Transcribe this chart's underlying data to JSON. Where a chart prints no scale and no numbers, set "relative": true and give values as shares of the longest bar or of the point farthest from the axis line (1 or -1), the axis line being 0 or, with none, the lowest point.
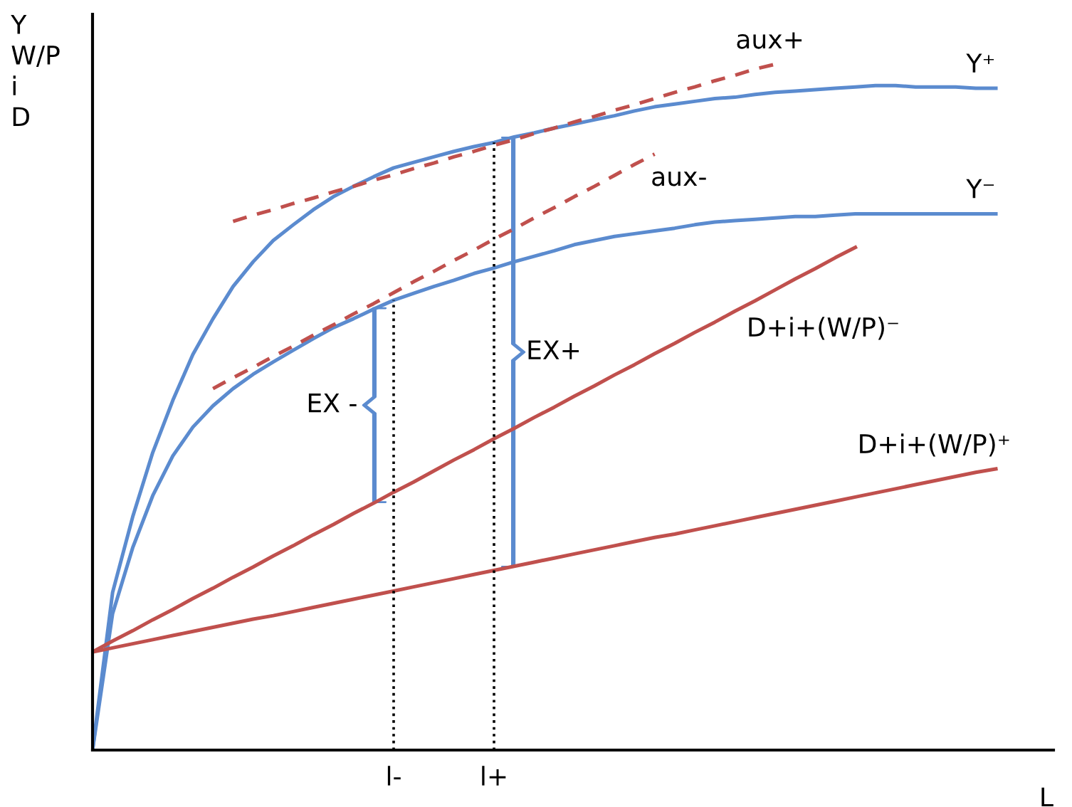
{
  "chart_data": {
    "type": "line",
    "relative": true,
    "xlabel": "L",
    "ylabel": "Y\nW/P\ni\nD",
    "marker": "none",
    "categories": [
      null,
      null,
      null,
      null,
      null,
      null,
      null,
      null,
      null,
      null,
      null,
      null,
      null,
      null,
      null,
      "l-",
      null,
      null,
      null,
      null,
      "l+",
      null,
      null,
      null,
      null,
      null,
      null,
      null,
      null,
      null,
      null,
      null,
      null,
      null,
      null,
      null,
      null,
      null,
      null,
      null,
      null,
      null,
      null,
      null,
      null,
      null,
      null,
      null
    ],
    "series": [
      {
        "name": "Y⁺",
        "color": "#5b8bcf",
        "line_style": "solid",
        "values": [
          0,
          0.23,
          0.34,
          0.434,
          0.51,
          0.577,
          0.629,
          0.676,
          0.712,
          0.743,
          0.766,
          0.788,
          0.807,
          0.822,
          0.836,
          0.849,
          0.857,
          0.865,
          0.873,
          0.88,
          0.886,
          0.894,
          0.9,
          0.907,
          0.913,
          0.919,
          0.925,
          0.932,
          0.938,
          0.942,
          0.946,
          0.95,
          0.952,
          0.956,
          0.959,
          0.961,
          0.963,
          0.965,
          0.967,
          0.969,
          0.969,
          0.967,
          0.967,
          0.967,
          0.965,
          0.965,
          null,
          null
        ]
      },
      {
        "name": "Y⁻",
        "color": "#5b8bcf",
        "line_style": "solid",
        "values": [
          0,
          0.199,
          0.295,
          0.371,
          0.429,
          0.471,
          0.502,
          0.527,
          0.548,
          0.566,
          0.583,
          0.6,
          0.616,
          0.629,
          0.643,
          0.656,
          0.666,
          0.676,
          0.685,
          0.695,
          0.703,
          0.712,
          0.72,
          0.728,
          0.737,
          0.743,
          0.749,
          0.753,
          0.757,
          0.761,
          0.766,
          0.77,
          0.772,
          0.774,
          0.776,
          0.778,
          0.778,
          0.78,
          0.782,
          0.782,
          0.782,
          0.782,
          0.782,
          0.782,
          0.782,
          0.782,
          null,
          null
        ]
      },
      {
        "name": "aux+",
        "color": "#c0504d",
        "line_style": "dashed",
        "values": [
          null,
          null,
          null,
          null,
          null,
          null,
          null,
          0.771,
          0.78,
          0.788,
          0.797,
          0.805,
          0.814,
          0.822,
          0.831,
          0.839,
          0.848,
          0.856,
          0.865,
          0.873,
          0.882,
          0.89,
          0.899,
          0.907,
          0.916,
          0.924,
          0.933,
          0.941,
          0.95,
          0.959,
          0.967,
          0.976,
          0.984,
          0.993,
          1.0,
          null,
          null,
          null,
          null,
          null,
          null,
          null,
          null,
          null,
          null,
          null,
          null,
          null
        ]
      },
      {
        "name": "aux-",
        "color": "#c0504d",
        "line_style": "dashed",
        "values": [
          null,
          null,
          null,
          null,
          null,
          null,
          0.527,
          0.543,
          0.558,
          0.574,
          0.589,
          0.605,
          0.62,
          0.636,
          0.651,
          0.667,
          0.683,
          0.698,
          0.714,
          0.729,
          0.745,
          0.76,
          0.776,
          0.791,
          0.807,
          0.822,
          0.838,
          0.854,
          0.869,
          null,
          null,
          null,
          null,
          null,
          null,
          null,
          null,
          null,
          null,
          null,
          null,
          null,
          null,
          null,
          null,
          null,
          null,
          null
        ]
      },
      {
        "name": "D+i+(W/P)⁻",
        "color": "#c0504d",
        "line_style": "solid",
        "values": [
          0.143,
          0.159,
          0.174,
          0.19,
          0.205,
          0.221,
          0.236,
          0.252,
          0.267,
          0.283,
          0.298,
          0.314,
          0.329,
          0.345,
          0.36,
          0.376,
          0.391,
          0.407,
          0.423,
          0.438,
          0.454,
          0.469,
          0.485,
          0.5,
          0.516,
          0.531,
          0.547,
          0.562,
          0.578,
          0.593,
          0.609,
          0.624,
          0.64,
          0.655,
          0.671,
          0.687,
          0.702,
          0.718,
          0.733,
          null,
          null,
          null,
          null,
          null,
          null,
          null,
          null,
          null
        ]
      },
      {
        "name": "D+i+(W/P)⁺",
        "color": "#c0504d",
        "line_style": "solid",
        "values": [
          0.143,
          0.149,
          0.155,
          0.161,
          0.167,
          0.173,
          0.179,
          0.185,
          0.191,
          0.196,
          0.202,
          0.208,
          0.214,
          0.22,
          0.226,
          0.232,
          0.238,
          0.244,
          0.25,
          0.256,
          0.262,
          0.268,
          0.274,
          0.28,
          0.286,
          0.292,
          0.298,
          0.304,
          0.31,
          0.315,
          0.321,
          0.327,
          0.333,
          0.339,
          0.345,
          0.351,
          0.357,
          0.363,
          0.369,
          0.375,
          0.381,
          0.387,
          0.393,
          0.399,
          0.405,
          0.41,
          null,
          null
        ]
      }
    ],
    "ref_lines": [
      {
        "axis": "x",
        "value": "l-",
        "color": "#000000",
        "line_style": "dotted"
      },
      {
        "axis": "x",
        "value": "l+",
        "color": "#000000",
        "line_style": "dotted"
      }
    ],
    "annotations": [
      "EX -",
      "EX+"
    ]
  }
}
